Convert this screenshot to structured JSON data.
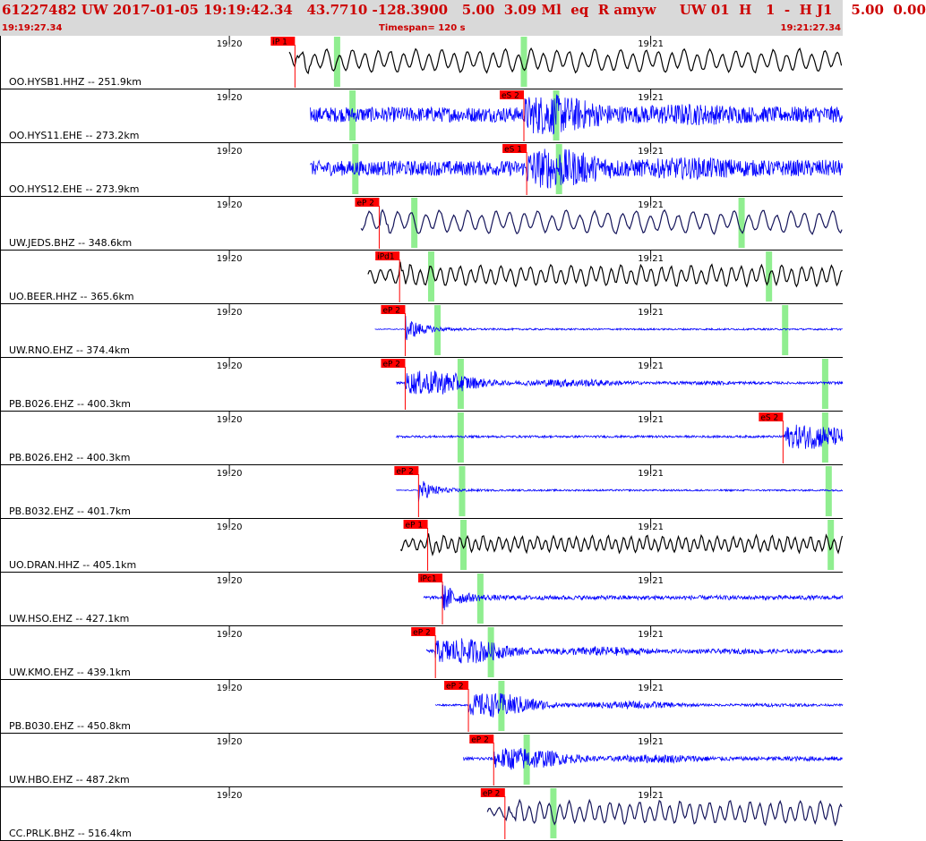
{
  "header": {
    "title": "61227482 UW 2017-01-05 19:19:42.34   43.7710 -128.3900   5.00  3.09 Ml  eq  R amyw     UW 01  H   1  -  H J1    5.00  0.00",
    "start_time": "19:19:27.34",
    "timespan": "Timespan= 120 s",
    "end_time": "19:21:27.34"
  },
  "colors": {
    "pick": "#ff0000",
    "marker": "#90ee90",
    "black": "#000000",
    "blue": "#0000ff",
    "navy": "#14145a"
  },
  "chart_data": {
    "type": "line",
    "title": "",
    "x_start": "19:19:27.34",
    "x_end": "19:21:27.34",
    "timespan_s": 120,
    "minute_ticks": [
      {
        "label": "19:20",
        "t": 32.66
      },
      {
        "label": "19:21",
        "t": 92.66
      }
    ],
    "series": [
      {
        "name": "OO.HYSB1.HHZ -- 251.9km",
        "color": "black",
        "onset": 41.2,
        "freq": 0.55,
        "style": "ls",
        "amp_pre": 0.55,
        "amp_post": 0.55,
        "picks": [
          {
            "label": "iP 1",
            "t": 42.0
          }
        ],
        "green": [
          48.0,
          74.6
        ]
      },
      {
        "name": "OO.HYS11.EHE -- 273.2km",
        "color": "blue",
        "onset": 44.2,
        "freq": 3.0,
        "style": "noise",
        "amp_pre": 0.35,
        "amp_post": 0.8,
        "picks": [
          {
            "label": "eS 2",
            "t": 74.6
          }
        ],
        "green": [
          50.2,
          79.2
        ]
      },
      {
        "name": "OO.HYS12.EHE -- 273.9km",
        "color": "blue",
        "onset": 44.2,
        "freq": 3.0,
        "style": "noise",
        "amp_pre": 0.35,
        "amp_post": 0.8,
        "picks": [
          {
            "label": "eS 1",
            "t": 75.0
          }
        ],
        "green": [
          50.6,
          79.6
        ]
      },
      {
        "name": "UW.JEDS.BHZ -- 348.6km",
        "color": "navy",
        "onset": 51.4,
        "freq": 0.5,
        "style": "ls",
        "amp_pre": 0.5,
        "amp_post": 0.55,
        "picks": [
          {
            "label": "eP 2",
            "t": 54.0
          }
        ],
        "green": [
          59.0,
          105.6
        ]
      },
      {
        "name": "UO.BEER.HHZ -- 365.6km",
        "color": "black",
        "onset": 52.4,
        "freq": 0.7,
        "style": "ls",
        "amp_pre": 0.35,
        "amp_post": 0.5,
        "picks": [
          {
            "label": "iPd1",
            "t": 56.9
          }
        ],
        "green": [
          61.4,
          109.5
        ]
      },
      {
        "name": "UW.RNO.EHZ -- 374.4km",
        "color": "blue",
        "onset": 53.4,
        "freq": 2.5,
        "style": "impulse",
        "amp_pre": 0.02,
        "amp_post": 0.6,
        "picks": [
          {
            "label": "eP 2",
            "t": 57.7
          }
        ],
        "green": [
          62.3,
          111.8
        ]
      },
      {
        "name": "PB.B026.EHZ -- 400.3km",
        "color": "blue",
        "onset": 56.4,
        "freq": 3.5,
        "style": "burst",
        "amp_pre": 0.05,
        "amp_post": 0.7,
        "picks": [
          {
            "label": "eP 2",
            "t": 57.7
          }
        ],
        "green": [
          65.6,
          117.5
        ]
      },
      {
        "name": "PB.B026.EH2 -- 400.3km",
        "color": "blue",
        "onset": 56.4,
        "freq": 3.5,
        "style": "burst",
        "amp_pre": 0.05,
        "amp_post": 0.7,
        "picks": [
          {
            "label": "eS 2",
            "t": 111.5
          }
        ],
        "green": [
          65.6,
          117.5
        ]
      },
      {
        "name": "PB.B032.EHZ -- 401.7km",
        "color": "blue",
        "onset": 56.4,
        "freq": 2.5,
        "style": "impulse",
        "amp_pre": 0.02,
        "amp_post": 0.55,
        "picks": [
          {
            "label": "eP 2",
            "t": 59.6
          }
        ],
        "green": [
          65.8,
          118.0
        ]
      },
      {
        "name": "UO.DRAN.HHZ -- 405.1km",
        "color": "black",
        "onset": 57.0,
        "freq": 0.9,
        "style": "ls",
        "amp_pre": 0.3,
        "amp_post": 0.4,
        "picks": [
          {
            "label": "eP 1",
            "t": 60.9
          }
        ],
        "green": [
          66.0,
          118.3
        ]
      },
      {
        "name": "UW.HSO.EHZ -- 427.1km",
        "color": "blue",
        "onset": 60.3,
        "freq": 3.0,
        "style": "impulse",
        "amp_pre": 0.08,
        "amp_post": 0.6,
        "picks": [
          {
            "label": "iPc1",
            "t": 63.0
          }
        ],
        "green": [
          68.4
        ]
      },
      {
        "name": "UW.KMO.EHZ -- 439.1km",
        "color": "blue",
        "onset": 60.7,
        "freq": 3.5,
        "style": "burst",
        "amp_pre": 0.08,
        "amp_post": 0.7,
        "picks": [
          {
            "label": "eP 2",
            "t": 62.0
          }
        ],
        "green": [
          69.9
        ]
      },
      {
        "name": "PB.B030.EHZ -- 450.8km",
        "color": "blue",
        "onset": 62.0,
        "freq": 3.5,
        "style": "burst",
        "amp_pre": 0.04,
        "amp_post": 0.7,
        "picks": [
          {
            "label": "eP 2",
            "t": 66.7
          }
        ],
        "green": [
          71.4
        ]
      },
      {
        "name": "UW.HBO.EHZ -- 487.2km",
        "color": "blue",
        "onset": 66.0,
        "freq": 3.0,
        "style": "burst",
        "amp_pre": 0.08,
        "amp_post": 0.6,
        "picks": [
          {
            "label": "eP 2",
            "t": 70.3
          }
        ],
        "green": [
          75.0
        ]
      },
      {
        "name": "CC.PRLK.BHZ -- 516.4km",
        "color": "navy",
        "onset": 69.4,
        "freq": 0.7,
        "style": "ls",
        "amp_pre": 0.25,
        "amp_post": 0.55,
        "picks": [
          {
            "label": "eP 2",
            "t": 71.9
          }
        ],
        "green": [
          78.8
        ]
      }
    ]
  }
}
